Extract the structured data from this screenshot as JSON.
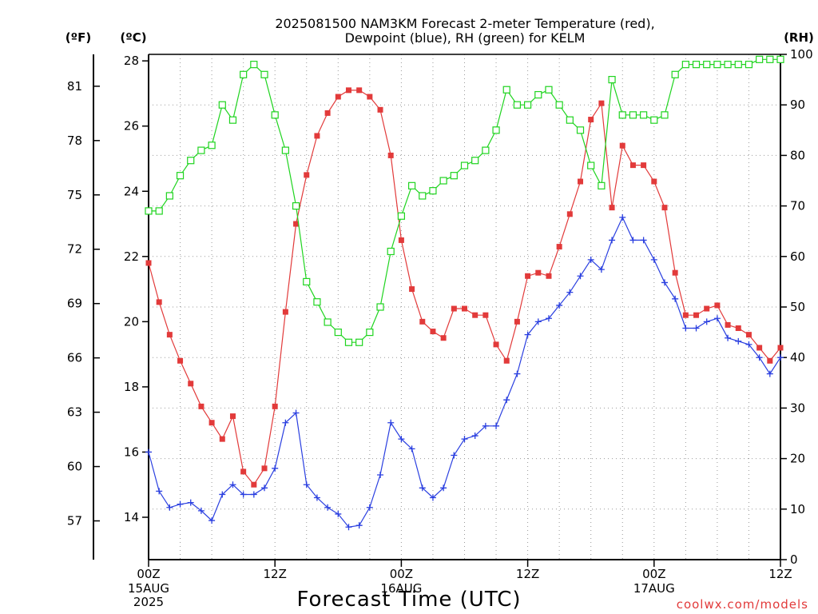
{
  "chart_data": {
    "type": "line",
    "title_line1": "2025081500 NAM3KM Forecast 2-meter Temperature (red),",
    "title_line2": "Dewpoint (blue), RH (green) for KELM",
    "xlabel": "Forecast Time (UTC)",
    "credit": "coolwx.com/models",
    "left_unit_f": "(ºF)",
    "left_unit_c": "(ºC)",
    "right_unit": "(RH)",
    "x_range_hours": [
      0,
      60
    ],
    "y_left_c_range": [
      12.7,
      28.2
    ],
    "y_right_rh_range": [
      0,
      100
    ],
    "c_ticks": [
      "14",
      "16",
      "18",
      "20",
      "22",
      "24",
      "26",
      "28"
    ],
    "f_ticks": [
      "57",
      "60",
      "63",
      "66",
      "69",
      "72",
      "75",
      "78",
      "81"
    ],
    "rh_ticks": [
      "0",
      "10",
      "20",
      "30",
      "40",
      "50",
      "60",
      "70",
      "80",
      "90",
      "100"
    ],
    "x_ticks": [
      {
        "hour": 0,
        "line1": "00Z",
        "line2": "15AUG",
        "line3": "2025"
      },
      {
        "hour": 12,
        "line1": "12Z",
        "line2": "",
        "line3": ""
      },
      {
        "hour": 24,
        "line1": "00Z",
        "line2": "16AUG",
        "line3": ""
      },
      {
        "hour": 36,
        "line1": "12Z",
        "line2": "",
        "line3": ""
      },
      {
        "hour": 48,
        "line1": "00Z",
        "line2": "17AUG",
        "line3": ""
      },
      {
        "hour": 60,
        "line1": "12Z",
        "line2": "",
        "line3": ""
      }
    ],
    "series": [
      {
        "key": "temperature",
        "color": "#e23a3a",
        "marker": "filled-square",
        "axis": "celsius",
        "x": [
          0,
          1,
          2,
          3,
          4,
          5,
          6,
          7,
          8,
          9,
          10,
          11,
          12,
          13,
          14,
          15,
          16,
          17,
          18,
          19,
          20,
          21,
          22,
          23,
          24,
          25,
          26,
          27,
          28,
          29,
          30,
          31,
          32,
          33,
          34,
          35,
          36,
          37,
          38,
          39,
          40,
          41,
          42,
          43,
          44,
          45,
          46,
          47,
          48,
          49,
          50,
          51,
          52,
          53,
          54,
          55,
          56,
          57,
          58,
          59,
          60
        ],
        "y": [
          21.8,
          20.6,
          19.6,
          18.8,
          18.1,
          17.4,
          16.9,
          16.4,
          17.1,
          15.4,
          15.0,
          15.5,
          17.4,
          20.3,
          23.0,
          24.5,
          25.7,
          26.4,
          26.9,
          27.1,
          27.1,
          26.9,
          26.5,
          25.1,
          22.5,
          21.0,
          20.0,
          19.7,
          19.5,
          20.4,
          20.4,
          20.2,
          20.2,
          19.3,
          18.8,
          20.0,
          21.4,
          21.5,
          21.4,
          22.3,
          23.3,
          24.3,
          26.2,
          26.7,
          23.5,
          25.4,
          24.8,
          24.8,
          24.3,
          23.5,
          21.5,
          20.2,
          20.2,
          20.4,
          20.5,
          19.9,
          19.8,
          19.6,
          19.2,
          18.8,
          19.2
        ]
      },
      {
        "key": "dewpoint",
        "color": "#2a3fe0",
        "marker": "plus",
        "axis": "celsius",
        "x": [
          0,
          1,
          2,
          3,
          4,
          5,
          6,
          7,
          8,
          9,
          10,
          11,
          12,
          13,
          14,
          15,
          16,
          17,
          18,
          19,
          20,
          21,
          22,
          23,
          24,
          25,
          26,
          27,
          28,
          29,
          30,
          31,
          32,
          33,
          34,
          35,
          36,
          37,
          38,
          39,
          40,
          41,
          42,
          43,
          44,
          45,
          46,
          47,
          48,
          49,
          50,
          51,
          52,
          53,
          54,
          55,
          56,
          57,
          58,
          59,
          60
        ],
        "y": [
          16.0,
          14.8,
          14.3,
          14.4,
          14.45,
          14.2,
          13.9,
          14.7,
          15.0,
          14.7,
          14.7,
          14.9,
          15.5,
          16.9,
          17.2,
          15.0,
          14.6,
          14.3,
          14.1,
          13.7,
          13.75,
          14.3,
          15.3,
          16.9,
          16.4,
          16.1,
          14.9,
          14.6,
          14.9,
          15.9,
          16.4,
          16.5,
          16.8,
          16.8,
          17.6,
          18.4,
          19.6,
          20.0,
          20.1,
          20.5,
          20.9,
          21.4,
          21.9,
          21.6,
          22.5,
          23.2,
          22.5,
          22.5,
          21.9,
          21.2,
          20.7,
          19.8,
          19.8,
          20.0,
          20.1,
          19.5,
          19.4,
          19.3,
          18.9,
          18.4,
          18.9
        ]
      },
      {
        "key": "rh",
        "color": "#1fd41f",
        "marker": "open-square",
        "axis": "rh",
        "x": [
          0,
          1,
          2,
          3,
          4,
          5,
          6,
          7,
          8,
          9,
          10,
          11,
          12,
          13,
          14,
          15,
          16,
          17,
          18,
          19,
          20,
          21,
          22,
          23,
          24,
          25,
          26,
          27,
          28,
          29,
          30,
          31,
          32,
          33,
          34,
          35,
          36,
          37,
          38,
          39,
          40,
          41,
          42,
          43,
          44,
          45,
          46,
          47,
          48,
          49,
          50,
          51,
          52,
          53,
          54,
          55,
          56,
          57,
          58,
          59,
          60
        ],
        "y": [
          69,
          69,
          72,
          76,
          79,
          81,
          82,
          90,
          87,
          96,
          98,
          96,
          88,
          81,
          70,
          55,
          51,
          47,
          45,
          43,
          43,
          45,
          50,
          61,
          68,
          74,
          72,
          73,
          75,
          76,
          78,
          79,
          81,
          85,
          93,
          90,
          90,
          92,
          93,
          90,
          87,
          85,
          78,
          74,
          95,
          88,
          88,
          88,
          87,
          88,
          96,
          98,
          98,
          98,
          98,
          98,
          98,
          98,
          99,
          99,
          99
        ]
      }
    ]
  }
}
